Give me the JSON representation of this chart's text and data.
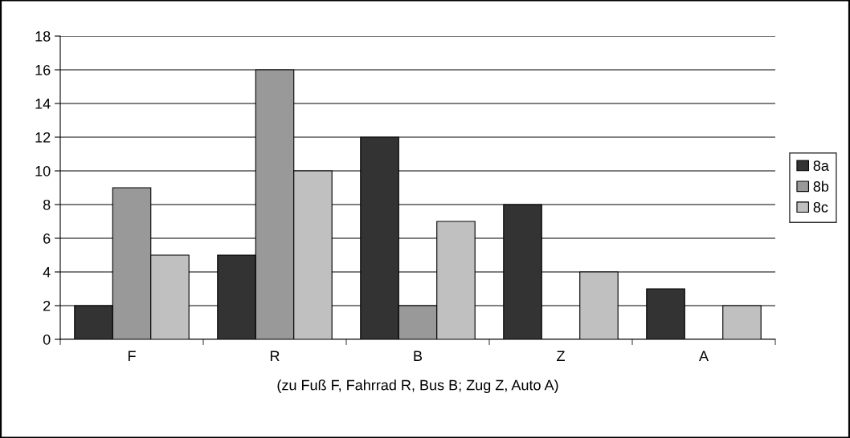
{
  "chart_data": {
    "type": "bar",
    "xlabel": "(zu Fuß F, Fahrrad R, Bus B; Zug Z, Auto A)",
    "categories": [
      "F",
      "R",
      "B",
      "Z",
      "A"
    ],
    "series": [
      {
        "name": "8a",
        "color": "#333333",
        "values": [
          2,
          5,
          12,
          8,
          3
        ]
      },
      {
        "name": "8b",
        "color": "#999999",
        "values": [
          9,
          16,
          2,
          null,
          null
        ]
      },
      {
        "name": "8c",
        "color": "#c0c0c0",
        "values": [
          5,
          10,
          7,
          4,
          2
        ]
      }
    ],
    "ylim": [
      0,
      18
    ],
    "yticks": [
      0,
      2,
      4,
      6,
      8,
      10,
      12,
      14,
      16,
      18
    ],
    "grid": "y",
    "legend": "right"
  }
}
